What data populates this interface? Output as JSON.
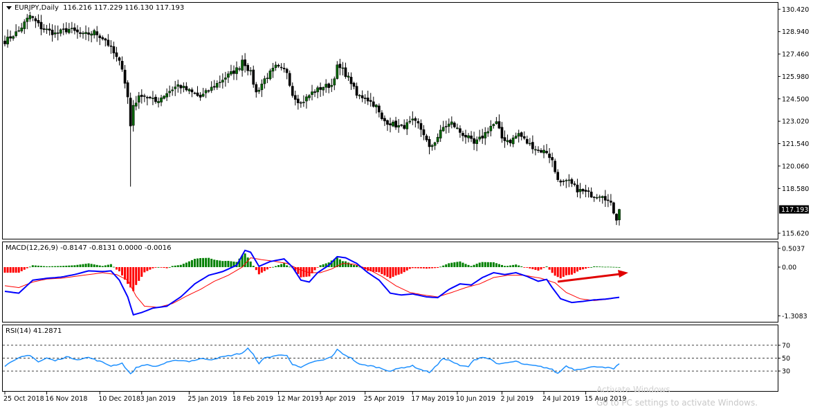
{
  "colors": {
    "background": "#ffffff",
    "frame": "#000000",
    "bull_candle": "#006400",
    "bear_candle": "#000000",
    "macd_line": "#0000ff",
    "signal_line": "#ff0000",
    "histogram_positive": "#008000",
    "histogram_negative": "#ff0000",
    "rsi_line": "#1e90ff",
    "price_tag_bg": "#000000",
    "price_tag_text": "#ffffff",
    "annotation_arrow": "#e00000"
  },
  "chart_data": [
    {
      "type": "candlestick",
      "title": "EURJPY,Daily",
      "ohlc_values": "116.216 117.229 116.130 117.193",
      "current_price_label": "117.193",
      "ylim": [
        115.3,
        130.8
      ],
      "yticks": [
        "130.420",
        "128.940",
        "127.460",
        "125.980",
        "124.500",
        "123.020",
        "121.540",
        "120.060",
        "118.580",
        "117.193",
        "115.620"
      ],
      "grid": false,
      "x_categories": [
        "25 Oct 2018",
        "16 Nov 2018",
        "10 Dec 2018",
        "3 Jan 2019",
        "25 Jan 2019",
        "18 Feb 2019",
        "12 Mar 2019",
        "3 Apr 2019",
        "25 Apr 2019",
        "17 May 2019",
        "10 Jun 2019",
        "2 Jul 2019",
        "24 Jul 2019",
        "15 Aug 2019"
      ],
      "close_path_keypoints": [
        [
          0,
          128.3
        ],
        [
          5,
          129.0
        ],
        [
          9,
          130.0
        ],
        [
          13,
          129.2
        ],
        [
          18,
          128.8
        ],
        [
          23,
          129.1
        ],
        [
          28,
          128.7
        ],
        [
          32,
          128.9
        ],
        [
          36,
          128.4
        ],
        [
          39,
          127.5
        ],
        [
          42,
          126.6
        ],
        [
          44,
          124.6
        ],
        [
          45,
          122.7
        ],
        [
          46,
          124.1
        ],
        [
          49,
          124.8
        ],
        [
          54,
          124.3
        ],
        [
          58,
          124.9
        ],
        [
          62,
          125.4
        ],
        [
          66,
          125.0
        ],
        [
          70,
          124.6
        ],
        [
          74,
          125.2
        ],
        [
          78,
          125.8
        ],
        [
          82,
          126.3
        ],
        [
          84,
          126.6
        ],
        [
          85,
          127.1
        ],
        [
          88,
          126.2
        ],
        [
          90,
          124.9
        ],
        [
          93,
          125.8
        ],
        [
          97,
          126.6
        ],
        [
          101,
          126.3
        ],
        [
          103,
          124.8
        ],
        [
          106,
          124.2
        ],
        [
          110,
          124.9
        ],
        [
          114,
          125.3
        ],
        [
          117,
          125.4
        ],
        [
          119,
          126.6
        ],
        [
          121,
          126.4
        ],
        [
          124,
          125.6
        ],
        [
          126,
          124.7
        ],
        [
          129,
          124.6
        ],
        [
          133,
          124.0
        ],
        [
          135,
          123.1
        ],
        [
          138,
          122.9
        ],
        [
          142,
          122.6
        ],
        [
          146,
          123.0
        ],
        [
          148,
          122.8
        ],
        [
          150,
          122.2
        ],
        [
          152,
          121.2
        ],
        [
          154,
          121.7
        ],
        [
          157,
          122.6
        ],
        [
          160,
          122.9
        ],
        [
          163,
          122.3
        ],
        [
          166,
          121.9
        ],
        [
          168,
          121.5
        ],
        [
          171,
          122.0
        ],
        [
          174,
          122.7
        ],
        [
          176,
          122.9
        ],
        [
          178,
          121.9
        ],
        [
          181,
          121.7
        ],
        [
          184,
          122.2
        ],
        [
          187,
          121.6
        ],
        [
          191,
          121.1
        ],
        [
          194,
          121.0
        ],
        [
          196,
          120.4
        ],
        [
          197,
          119.7
        ],
        [
          199,
          118.9
        ],
        [
          202,
          119.0
        ],
        [
          205,
          118.5
        ],
        [
          208,
          118.3
        ],
        [
          211,
          118.1
        ],
        [
          214,
          118.2
        ],
        [
          217,
          117.5
        ],
        [
          219,
          116.6
        ],
        [
          220,
          117.19
        ]
      ],
      "spike_low": {
        "bar": 45,
        "value": 118.7
      }
    },
    {
      "type": "line",
      "title": "MACD(12,26,9) -0.8147 -0.8131 0.0000 -0.0016",
      "ylim": [
        -1.45,
        0.65
      ],
      "yticks": [
        "0.5037",
        "0.00",
        "-1.3083"
      ],
      "macd_keypoints": [
        [
          0,
          -0.65
        ],
        [
          5,
          -0.7
        ],
        [
          10,
          -0.35
        ],
        [
          15,
          -0.3
        ],
        [
          20,
          -0.27
        ],
        [
          25,
          -0.2
        ],
        [
          30,
          -0.1
        ],
        [
          35,
          -0.12
        ],
        [
          38,
          -0.1
        ],
        [
          41,
          -0.35
        ],
        [
          44,
          -0.8
        ],
        [
          46,
          -1.28
        ],
        [
          49,
          -1.22
        ],
        [
          53,
          -1.1
        ],
        [
          58,
          -1.05
        ],
        [
          63,
          -0.8
        ],
        [
          68,
          -0.45
        ],
        [
          73,
          -0.22
        ],
        [
          78,
          -0.12
        ],
        [
          83,
          0.05
        ],
        [
          86,
          0.45
        ],
        [
          88,
          0.4
        ],
        [
          91,
          0.02
        ],
        [
          95,
          0.15
        ],
        [
          100,
          0.22
        ],
        [
          103,
          0.0
        ],
        [
          106,
          -0.35
        ],
        [
          109,
          -0.4
        ],
        [
          112,
          -0.15
        ],
        [
          116,
          0.05
        ],
        [
          119,
          0.28
        ],
        [
          122,
          0.25
        ],
        [
          126,
          0.1
        ],
        [
          130,
          -0.15
        ],
        [
          134,
          -0.35
        ],
        [
          138,
          -0.7
        ],
        [
          142,
          -0.75
        ],
        [
          146,
          -0.72
        ],
        [
          151,
          -0.8
        ],
        [
          155,
          -0.82
        ],
        [
          159,
          -0.6
        ],
        [
          163,
          -0.45
        ],
        [
          167,
          -0.48
        ],
        [
          171,
          -0.28
        ],
        [
          175,
          -0.15
        ],
        [
          179,
          -0.2
        ],
        [
          183,
          -0.15
        ],
        [
          187,
          -0.25
        ],
        [
          191,
          -0.38
        ],
        [
          194,
          -0.33
        ],
        [
          196,
          -0.55
        ],
        [
          199,
          -0.85
        ],
        [
          203,
          -0.95
        ],
        [
          207,
          -0.92
        ],
        [
          211,
          -0.88
        ],
        [
          215,
          -0.86
        ],
        [
          218,
          -0.83
        ],
        [
          220,
          -0.81
        ]
      ],
      "signal_keypoints": [
        [
          0,
          -0.5
        ],
        [
          5,
          -0.55
        ],
        [
          10,
          -0.4
        ],
        [
          15,
          -0.32
        ],
        [
          20,
          -0.3
        ],
        [
          25,
          -0.25
        ],
        [
          30,
          -0.2
        ],
        [
          35,
          -0.15
        ],
        [
          40,
          -0.2
        ],
        [
          44,
          -0.35
        ],
        [
          47,
          -0.78
        ],
        [
          50,
          -1.05
        ],
        [
          55,
          -1.08
        ],
        [
          60,
          -0.98
        ],
        [
          65,
          -0.78
        ],
        [
          70,
          -0.6
        ],
        [
          75,
          -0.38
        ],
        [
          80,
          -0.22
        ],
        [
          85,
          0.0
        ],
        [
          88,
          0.25
        ],
        [
          92,
          0.2
        ],
        [
          97,
          0.15
        ],
        [
          101,
          0.1
        ],
        [
          105,
          -0.05
        ],
        [
          109,
          -0.15
        ],
        [
          113,
          -0.15
        ],
        [
          117,
          -0.05
        ],
        [
          121,
          0.1
        ],
        [
          125,
          0.08
        ],
        [
          130,
          -0.05
        ],
        [
          135,
          -0.25
        ],
        [
          140,
          -0.5
        ],
        [
          145,
          -0.68
        ],
        [
          150,
          -0.75
        ],
        [
          155,
          -0.8
        ],
        [
          160,
          -0.68
        ],
        [
          165,
          -0.55
        ],
        [
          170,
          -0.45
        ],
        [
          175,
          -0.28
        ],
        [
          180,
          -0.22
        ],
        [
          186,
          -0.22
        ],
        [
          192,
          -0.3
        ],
        [
          197,
          -0.42
        ],
        [
          201,
          -0.68
        ],
        [
          206,
          -0.85
        ],
        [
          211,
          -0.9
        ],
        [
          216,
          -0.86
        ],
        [
          220,
          -0.81
        ]
      ],
      "histogram": "macd - signal per bar (rendered as columns on the zero line)"
    },
    {
      "type": "line",
      "title": "RSI(14) 41.2871",
      "ylim": [
        0,
        100
      ],
      "yticks": [
        "70",
        "50",
        "30"
      ],
      "levels": [
        70,
        50,
        30
      ],
      "rsi_keypoints": [
        [
          0,
          38
        ],
        [
          3,
          45
        ],
        [
          6,
          52
        ],
        [
          9,
          55
        ],
        [
          12,
          44
        ],
        [
          15,
          50
        ],
        [
          18,
          46
        ],
        [
          22,
          52
        ],
        [
          26,
          48
        ],
        [
          30,
          51
        ],
        [
          34,
          45
        ],
        [
          38,
          38
        ],
        [
          42,
          42
        ],
        [
          45,
          25
        ],
        [
          47,
          35
        ],
        [
          50,
          40
        ],
        [
          54,
          37
        ],
        [
          58,
          43
        ],
        [
          62,
          47
        ],
        [
          66,
          45
        ],
        [
          70,
          49
        ],
        [
          74,
          48
        ],
        [
          78,
          52
        ],
        [
          82,
          55
        ],
        [
          85,
          58
        ],
        [
          87,
          65
        ],
        [
          89,
          55
        ],
        [
          91,
          42
        ],
        [
          93,
          50
        ],
        [
          97,
          54
        ],
        [
          101,
          55
        ],
        [
          103,
          40
        ],
        [
          106,
          35
        ],
        [
          110,
          44
        ],
        [
          114,
          47
        ],
        [
          117,
          52
        ],
        [
          119,
          63
        ],
        [
          121,
          57
        ],
        [
          124,
          50
        ],
        [
          127,
          40
        ],
        [
          131,
          38
        ],
        [
          134,
          35
        ],
        [
          138,
          30
        ],
        [
          142,
          35
        ],
        [
          146,
          38
        ],
        [
          149,
          32
        ],
        [
          152,
          28
        ],
        [
          155,
          40
        ],
        [
          157,
          50
        ],
        [
          160,
          45
        ],
        [
          163,
          38
        ],
        [
          166,
          37
        ],
        [
          168,
          47
        ],
        [
          171,
          52
        ],
        [
          174,
          48
        ],
        [
          177,
          40
        ],
        [
          180,
          43
        ],
        [
          183,
          45
        ],
        [
          186,
          40
        ],
        [
          190,
          38
        ],
        [
          194,
          35
        ],
        [
          196,
          32
        ],
        [
          198,
          26
        ],
        [
          201,
          38
        ],
        [
          204,
          32
        ],
        [
          207,
          34
        ],
        [
          210,
          36
        ],
        [
          213,
          37
        ],
        [
          216,
          35
        ],
        [
          218,
          33
        ],
        [
          220,
          41.29
        ]
      ]
    }
  ],
  "annotation": {
    "type": "arrow",
    "description": "red arrow under MACD rising to the right"
  },
  "watermark": {
    "line1": "Activate Windows",
    "line2": "Go to PC settings to activate Windows."
  }
}
